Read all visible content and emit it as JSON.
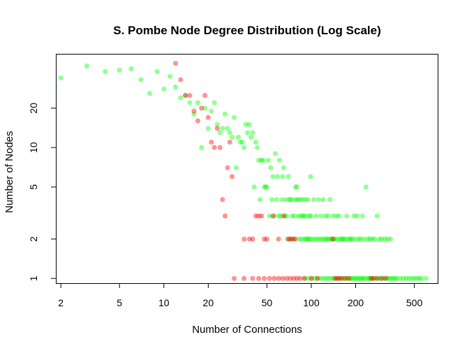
{
  "chart_data": {
    "type": "scatter",
    "title": "S. Pombe Node Degree Distribution (Log Scale)",
    "xlabel": "Number of Connections",
    "ylabel": "Number of Nodes",
    "log_x": true,
    "log_y": true,
    "xlim": [
      1.85,
      720
    ],
    "ylim": [
      0.92,
      52
    ],
    "xticks": [
      2,
      5,
      10,
      20,
      50,
      100,
      200,
      500
    ],
    "xtick_labels": [
      "2",
      "5",
      "10",
      "20",
      "50",
      "100",
      "200",
      "500"
    ],
    "yticks": [
      1,
      2,
      5,
      10,
      20
    ],
    "ytick_labels": [
      "1",
      "2",
      "5",
      "10",
      "20"
    ],
    "legend": "none",
    "grid": false,
    "series": [
      {
        "color": "#00ff00",
        "points": [
          [
            2,
            34
          ],
          [
            3,
            42
          ],
          [
            4,
            38
          ],
          [
            5,
            39
          ],
          [
            6,
            40
          ],
          [
            7,
            33
          ],
          [
            8,
            26
          ],
          [
            9,
            38
          ],
          [
            10,
            28
          ],
          [
            11,
            35
          ],
          [
            12,
            29
          ],
          [
            13,
            24
          ],
          [
            14,
            25
          ],
          [
            15,
            22
          ],
          [
            16,
            18
          ],
          [
            17,
            22
          ],
          [
            18,
            10
          ],
          [
            19,
            20
          ],
          [
            20,
            14
          ],
          [
            21,
            19
          ],
          [
            22,
            22
          ],
          [
            23,
            15
          ],
          [
            24,
            13
          ],
          [
            25,
            14
          ],
          [
            26,
            18
          ],
          [
            27,
            14
          ],
          [
            28,
            13
          ],
          [
            29,
            12
          ],
          [
            30,
            17
          ],
          [
            31,
            7
          ],
          [
            32,
            12
          ],
          [
            33,
            11
          ],
          [
            34,
            11
          ],
          [
            35,
            10
          ],
          [
            36,
            15
          ],
          [
            37,
            13
          ],
          [
            38,
            15
          ],
          [
            39,
            12
          ],
          [
            40,
            13
          ],
          [
            41,
            5
          ],
          [
            42,
            11
          ],
          [
            43,
            10
          ],
          [
            44,
            8
          ],
          [
            45,
            4
          ],
          [
            46,
            8
          ],
          [
            47,
            8
          ],
          [
            48,
            5
          ],
          [
            49,
            5
          ],
          [
            50,
            5
          ],
          [
            51,
            8
          ],
          [
            52,
            3
          ],
          [
            53,
            7
          ],
          [
            54,
            4
          ],
          [
            55,
            6
          ],
          [
            56,
            3
          ],
          [
            57,
            9
          ],
          [
            58,
            4
          ],
          [
            59,
            6
          ],
          [
            60,
            3
          ],
          [
            61,
            8
          ],
          [
            62,
            3
          ],
          [
            63,
            4
          ],
          [
            64,
            6
          ],
          [
            65,
            7
          ],
          [
            66,
            3
          ],
          [
            67,
            4
          ],
          [
            68,
            3
          ],
          [
            69,
            2
          ],
          [
            70,
            6
          ],
          [
            71,
            4
          ],
          [
            72,
            4
          ],
          [
            73,
            2
          ],
          [
            74,
            3
          ],
          [
            75,
            4
          ],
          [
            76,
            2
          ],
          [
            77,
            3
          ],
          [
            78,
            5
          ],
          [
            79,
            4
          ],
          [
            80,
            5
          ],
          [
            81,
            4
          ],
          [
            82,
            3
          ],
          [
            83,
            2
          ],
          [
            84,
            4
          ],
          [
            85,
            3
          ],
          [
            86,
            2
          ],
          [
            87,
            4
          ],
          [
            88,
            3
          ],
          [
            89,
            3
          ],
          [
            90,
            2
          ],
          [
            91,
            4
          ],
          [
            92,
            2
          ],
          [
            93,
            3
          ],
          [
            94,
            2
          ],
          [
            95,
            4
          ],
          [
            96,
            2
          ],
          [
            97,
            3
          ],
          [
            98,
            2
          ],
          [
            99,
            6
          ],
          [
            100,
            3
          ],
          [
            102,
            2
          ],
          [
            104,
            4
          ],
          [
            106,
            2
          ],
          [
            108,
            3
          ],
          [
            110,
            2
          ],
          [
            112,
            4
          ],
          [
            114,
            2
          ],
          [
            116,
            3
          ],
          [
            118,
            2
          ],
          [
            120,
            4
          ],
          [
            122,
            2
          ],
          [
            124,
            3
          ],
          [
            126,
            2
          ],
          [
            128,
            2
          ],
          [
            130,
            3
          ],
          [
            132,
            2
          ],
          [
            134,
            4
          ],
          [
            136,
            2
          ],
          [
            138,
            2
          ],
          [
            140,
            3
          ],
          [
            142,
            2
          ],
          [
            145,
            2
          ],
          [
            148,
            3
          ],
          [
            151,
            2
          ],
          [
            154,
            3
          ],
          [
            157,
            2
          ],
          [
            160,
            2
          ],
          [
            163,
            2
          ],
          [
            166,
            2
          ],
          [
            170,
            2
          ],
          [
            174,
            3
          ],
          [
            178,
            2
          ],
          [
            182,
            2
          ],
          [
            186,
            2
          ],
          [
            190,
            2
          ],
          [
            195,
            3
          ],
          [
            200,
            2
          ],
          [
            205,
            3
          ],
          [
            210,
            2
          ],
          [
            216,
            2
          ],
          [
            222,
            3
          ],
          [
            228,
            2
          ],
          [
            235,
            5
          ],
          [
            242,
            2
          ],
          [
            250,
            2
          ],
          [
            260,
            2
          ],
          [
            270,
            2
          ],
          [
            280,
            3
          ],
          [
            290,
            2
          ],
          [
            300,
            2
          ],
          [
            315,
            2
          ],
          [
            330,
            2
          ],
          [
            345,
            2
          ],
          [
            90,
            1
          ],
          [
            95,
            1
          ],
          [
            100,
            1
          ],
          [
            105,
            1
          ],
          [
            110,
            1
          ],
          [
            115,
            1
          ],
          [
            120,
            1
          ],
          [
            125,
            1
          ],
          [
            130,
            1
          ],
          [
            135,
            1
          ],
          [
            140,
            1
          ],
          [
            145,
            1
          ],
          [
            150,
            1
          ],
          [
            160,
            1
          ],
          [
            165,
            1
          ],
          [
            170,
            1
          ],
          [
            175,
            1
          ],
          [
            180,
            1
          ],
          [
            185,
            1
          ],
          [
            190,
            1
          ],
          [
            195,
            1
          ],
          [
            200,
            1
          ],
          [
            205,
            1
          ],
          [
            210,
            1
          ],
          [
            215,
            1
          ],
          [
            220,
            1
          ],
          [
            225,
            1
          ],
          [
            230,
            1
          ],
          [
            240,
            1
          ],
          [
            245,
            1
          ],
          [
            250,
            1
          ],
          [
            255,
            1
          ],
          [
            260,
            1
          ],
          [
            270,
            1
          ],
          [
            280,
            1
          ],
          [
            290,
            1
          ],
          [
            300,
            1
          ],
          [
            310,
            1
          ],
          [
            320,
            1
          ],
          [
            330,
            1
          ],
          [
            340,
            1
          ],
          [
            350,
            1
          ],
          [
            360,
            1
          ],
          [
            370,
            1
          ],
          [
            380,
            1
          ],
          [
            400,
            1
          ],
          [
            420,
            1
          ],
          [
            440,
            1
          ],
          [
            460,
            1
          ],
          [
            480,
            1
          ],
          [
            500,
            1
          ],
          [
            520,
            1
          ],
          [
            540,
            1
          ],
          [
            560,
            1
          ],
          [
            600,
            1
          ]
        ]
      },
      {
        "color": "#ff0000",
        "points": [
          [
            12,
            44
          ],
          [
            13,
            33
          ],
          [
            14,
            25
          ],
          [
            15,
            25
          ],
          [
            16,
            19
          ],
          [
            17,
            16
          ],
          [
            18,
            20
          ],
          [
            19,
            25
          ],
          [
            20,
            17
          ],
          [
            21,
            11
          ],
          [
            22,
            10
          ],
          [
            23,
            14
          ],
          [
            24,
            10
          ],
          [
            25,
            4
          ],
          [
            26,
            3
          ],
          [
            27,
            7
          ],
          [
            28,
            11
          ],
          [
            29,
            6
          ],
          [
            35,
            2
          ],
          [
            38,
            2
          ],
          [
            40,
            2
          ],
          [
            42,
            3
          ],
          [
            44,
            3
          ],
          [
            46,
            3
          ],
          [
            48,
            2
          ],
          [
            50,
            2
          ],
          [
            55,
            3
          ],
          [
            60,
            2
          ],
          [
            65,
            3
          ],
          [
            70,
            2
          ],
          [
            72,
            2
          ],
          [
            75,
            2
          ],
          [
            78,
            2
          ],
          [
            140,
            2
          ],
          [
            30,
            1
          ],
          [
            35,
            1
          ],
          [
            40,
            1
          ],
          [
            44,
            1
          ],
          [
            48,
            1
          ],
          [
            52,
            1
          ],
          [
            56,
            1
          ],
          [
            60,
            1
          ],
          [
            64,
            1
          ],
          [
            68,
            1
          ],
          [
            72,
            1
          ],
          [
            76,
            1
          ],
          [
            80,
            1
          ],
          [
            84,
            1
          ],
          [
            90,
            1
          ],
          [
            100,
            1
          ],
          [
            110,
            1
          ],
          [
            145,
            1
          ],
          [
            150,
            1
          ],
          [
            155,
            1
          ],
          [
            160,
            1
          ],
          [
            170,
            1
          ],
          [
            180,
            1
          ],
          [
            255,
            1
          ],
          [
            265,
            1
          ],
          [
            280,
            1
          ],
          [
            300,
            1
          ],
          [
            320,
            1
          ]
        ]
      }
    ]
  }
}
